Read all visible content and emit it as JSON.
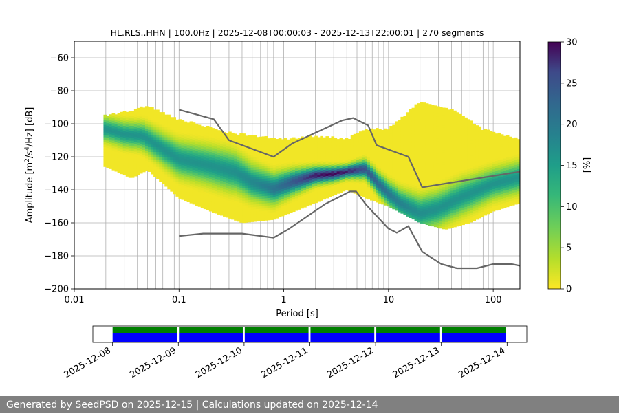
{
  "chart_data": [
    {
      "type": "heatmap",
      "title": "HL.RLS..HHN | 100.0Hz | 2025-12-08T00:00:03 - 2025-12-13T22:00:01 | 270 segments",
      "xlabel": "Period [s]",
      "ylabel_parts": [
        "Amplitude [m",
        "2",
        "/s",
        "4",
        "/Hz] [dB]"
      ],
      "x_scale": "log",
      "xlim": [
        0.01,
        180
      ],
      "ylim": [
        -200,
        -50
      ],
      "x_ticks": [
        0.01,
        0.1,
        1,
        10,
        100
      ],
      "x_tick_labels": [
        "0.01",
        "0.1",
        "1",
        "10",
        "100"
      ],
      "y_ticks": [
        -200,
        -180,
        -160,
        -140,
        -120,
        -100,
        -80,
        -60
      ],
      "y_tick_labels": [
        "−200",
        "−180",
        "−160",
        "−140",
        "−120",
        "−100",
        "−80",
        "−60"
      ],
      "grid": true,
      "colorbar": {
        "label": "[%]",
        "range": [
          0,
          30
        ],
        "ticks": [
          0,
          5,
          10,
          15,
          20,
          25,
          30
        ],
        "tick_labels": [
          "0",
          "5",
          "10",
          "15",
          "20",
          "25",
          "30"
        ],
        "colormap": "viridis_r"
      },
      "psd_mode": [
        [
          0.02,
          -104
        ],
        [
          0.03,
          -107
        ],
        [
          0.045,
          -108
        ],
        [
          0.07,
          -116
        ],
        [
          0.1,
          -122
        ],
        [
          0.2,
          -126
        ],
        [
          0.35,
          -130
        ],
        [
          0.5,
          -136
        ],
        [
          0.8,
          -140
        ],
        [
          1.2,
          -136
        ],
        [
          2,
          -132
        ],
        [
          3,
          -131
        ],
        [
          4.5,
          -129
        ],
        [
          6,
          -128
        ],
        [
          8,
          -137
        ],
        [
          10,
          -143
        ],
        [
          13,
          -149
        ],
        [
          20,
          -155
        ],
        [
          30,
          -152
        ],
        [
          50,
          -145
        ],
        [
          100,
          -137
        ],
        [
          180,
          -133
        ]
      ],
      "psd_spread_db": [
        [
          0.02,
          11
        ],
        [
          0.04,
          12
        ],
        [
          0.1,
          16
        ],
        [
          0.3,
          18
        ],
        [
          0.8,
          14
        ],
        [
          2,
          8
        ],
        [
          4,
          6
        ],
        [
          8,
          10
        ],
        [
          20,
          16
        ],
        [
          50,
          16
        ],
        [
          100,
          14
        ],
        [
          180,
          14
        ]
      ],
      "upper_band": [
        [
          0.02,
          -96
        ],
        [
          0.05,
          -90
        ],
        [
          0.1,
          -98
        ],
        [
          0.3,
          -106
        ],
        [
          1,
          -110
        ],
        [
          2,
          -108
        ],
        [
          4,
          -110
        ],
        [
          6,
          -104
        ],
        [
          10,
          -104
        ],
        [
          20,
          -87
        ],
        [
          40,
          -92
        ],
        [
          80,
          -104
        ],
        [
          180,
          -110
        ]
      ],
      "lower_band": [
        [
          0.02,
          -126
        ],
        [
          0.035,
          -133
        ],
        [
          0.05,
          -128
        ],
        [
          0.1,
          -145
        ],
        [
          0.2,
          -153
        ],
        [
          0.4,
          -160
        ],
        [
          0.8,
          -158
        ],
        [
          2,
          -148
        ],
        [
          4,
          -140
        ],
        [
          6,
          -145
        ],
        [
          10,
          -150
        ],
        [
          20,
          -160
        ],
        [
          35,
          -164
        ],
        [
          60,
          -160
        ],
        [
          100,
          -153
        ],
        [
          180,
          -148
        ]
      ],
      "series": [
        {
          "x": [
            0.1,
            0.215,
            0.3,
            0.8,
            1.2,
            3.6,
            4.6,
            6.4,
            7.7,
            15.5,
            21,
            180
          ],
          "y": [
            -91.5,
            -97.3,
            -110,
            -120,
            -112,
            -98,
            -96.5,
            -101,
            -113,
            -120,
            -138.5,
            -129
          ]
        },
        {
          "x": [
            0.1,
            0.17,
            0.4,
            0.8,
            1.1,
            2.5,
            4.3,
            4.9,
            6.1,
            10,
            12,
            15.5,
            21,
            32,
            45,
            70,
            100,
            150,
            180
          ],
          "y": [
            -168,
            -166.5,
            -166.5,
            -169,
            -164,
            -148.5,
            -141,
            -141,
            -149,
            -163.5,
            -166,
            -162,
            -177.5,
            -185,
            -187.5,
            -187.5,
            -185,
            -185,
            -186
          ]
        }
      ]
    },
    {
      "type": "timeline",
      "x_ticks": [
        "2025-12-08",
        "2025-12-09",
        "2025-12-10",
        "2025-12-11",
        "2025-12-12",
        "2025-12-13",
        "2025-12-14"
      ],
      "range_days": [
        -0.3,
        6.3
      ],
      "segments": [
        [
          0,
          0.98
        ],
        [
          1.01,
          1.98
        ],
        [
          2.01,
          2.98
        ],
        [
          3.01,
          3.98
        ],
        [
          4.01,
          4.98
        ],
        [
          5.01,
          5.98
        ]
      ],
      "colors": {
        "top": "#008000",
        "bottom": "#0000ff"
      }
    }
  ],
  "footer": {
    "text": "Generated by SeedPSD on 2025-12-15 | Calculations updated on 2025-12-14"
  }
}
